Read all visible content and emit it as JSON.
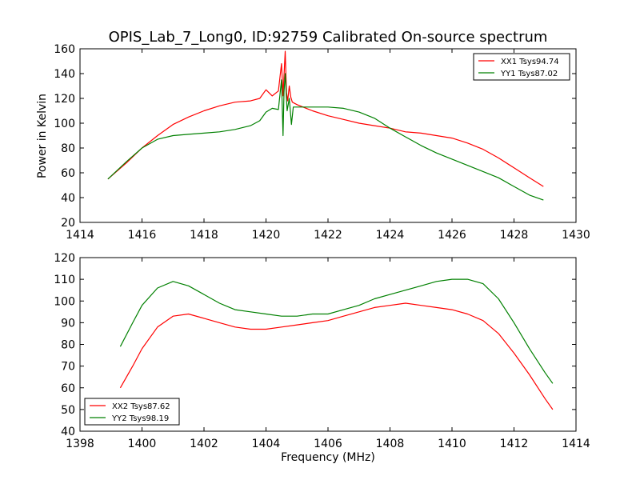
{
  "figure": {
    "title": "OPIS_Lab_7_Long0, ID:92759 Calibrated On-source spectrum",
    "ylabel": "Power in Kelvin",
    "xlabel": "Frequency (MHz)"
  },
  "chart_data": [
    {
      "type": "line",
      "xlim": [
        1414,
        1430
      ],
      "ylim": [
        20,
        160
      ],
      "xticks": [
        1414,
        1416,
        1418,
        1420,
        1422,
        1424,
        1426,
        1428,
        1430
      ],
      "yticks": [
        20,
        40,
        60,
        80,
        100,
        120,
        140,
        160
      ],
      "legend": "top-right",
      "grid": false,
      "series": [
        {
          "name": "XX1 Tsys94.74",
          "color": "#ff0000",
          "x": [
            1414.9,
            1415.5,
            1416.0,
            1416.5,
            1417.0,
            1417.5,
            1418.0,
            1418.5,
            1419.0,
            1419.5,
            1419.8,
            1420.0,
            1420.2,
            1420.4,
            1420.5,
            1420.55,
            1420.62,
            1420.66,
            1420.7,
            1420.75,
            1420.8,
            1420.85,
            1421.0,
            1421.5,
            1422.0,
            1422.5,
            1423.0,
            1423.5,
            1424.0,
            1424.5,
            1425.0,
            1425.5,
            1426.0,
            1426.5,
            1427.0,
            1427.5,
            1428.0,
            1428.5,
            1428.95
          ],
          "y": [
            55,
            68,
            80,
            90,
            99,
            105,
            110,
            114,
            117,
            118,
            120,
            127,
            122,
            126,
            148,
            122,
            158,
            125,
            118,
            130,
            121,
            117,
            115,
            110,
            106,
            103,
            100,
            98,
            96,
            93,
            92,
            90,
            88,
            84,
            79,
            72,
            64,
            56,
            49
          ]
        },
        {
          "name": "YY1 Tsys87.02",
          "color": "#008000",
          "x": [
            1414.9,
            1415.5,
            1416.0,
            1416.5,
            1417.0,
            1417.5,
            1418.0,
            1418.5,
            1419.0,
            1419.5,
            1419.8,
            1420.0,
            1420.2,
            1420.4,
            1420.5,
            1420.55,
            1420.58,
            1420.62,
            1420.68,
            1420.75,
            1420.82,
            1420.88,
            1421.0,
            1421.5,
            1422.0,
            1422.5,
            1423.0,
            1423.5,
            1424.0,
            1424.5,
            1425.0,
            1425.5,
            1426.0,
            1426.5,
            1427.0,
            1427.5,
            1428.0,
            1428.5,
            1428.95
          ],
          "y": [
            55,
            69,
            80,
            87,
            90,
            91,
            92,
            93,
            95,
            98,
            102,
            109,
            112,
            111,
            135,
            90,
            125,
            140,
            110,
            120,
            99,
            113,
            113,
            113,
            113,
            112,
            109,
            104,
            96,
            89,
            82,
            76,
            71,
            66,
            61,
            56,
            49,
            42,
            38
          ]
        }
      ]
    },
    {
      "type": "line",
      "xlim": [
        1398,
        1414
      ],
      "ylim": [
        40,
        120
      ],
      "xticks": [
        1398,
        1400,
        1402,
        1404,
        1406,
        1408,
        1410,
        1412,
        1414
      ],
      "yticks": [
        40,
        50,
        60,
        70,
        80,
        90,
        100,
        110,
        120
      ],
      "legend": "bottom-left",
      "grid": false,
      "series": [
        {
          "name": "XX2 Tsys87.62",
          "color": "#ff0000",
          "x": [
            1399.3,
            1399.7,
            1400.0,
            1400.5,
            1401.0,
            1401.5,
            1402.0,
            1402.5,
            1403.0,
            1403.5,
            1404.0,
            1404.5,
            1405.0,
            1405.5,
            1406.0,
            1406.5,
            1407.0,
            1407.5,
            1408.0,
            1408.5,
            1409.0,
            1409.5,
            1410.0,
            1410.5,
            1411.0,
            1411.5,
            1412.0,
            1412.5,
            1413.0,
            1413.25
          ],
          "y": [
            60,
            70,
            78,
            88,
            93,
            94,
            92,
            90,
            88,
            87,
            87,
            88,
            89,
            90,
            91,
            93,
            95,
            97,
            98,
            99,
            98,
            97,
            96,
            94,
            91,
            85,
            76,
            66,
            55,
            50
          ]
        },
        {
          "name": "YY2 Tsys98.19",
          "color": "#008000",
          "x": [
            1399.3,
            1399.7,
            1400.0,
            1400.5,
            1401.0,
            1401.5,
            1402.0,
            1402.5,
            1403.0,
            1403.5,
            1404.0,
            1404.5,
            1405.0,
            1405.5,
            1406.0,
            1406.5,
            1407.0,
            1407.5,
            1408.0,
            1408.5,
            1409.0,
            1409.5,
            1410.0,
            1410.5,
            1411.0,
            1411.5,
            1412.0,
            1412.5,
            1413.0,
            1413.25
          ],
          "y": [
            79,
            90,
            98,
            106,
            109,
            107,
            103,
            99,
            96,
            95,
            94,
            93,
            93,
            94,
            94,
            96,
            98,
            101,
            103,
            105,
            107,
            109,
            110,
            110,
            108,
            101,
            90,
            78,
            67,
            62
          ]
        }
      ]
    }
  ]
}
